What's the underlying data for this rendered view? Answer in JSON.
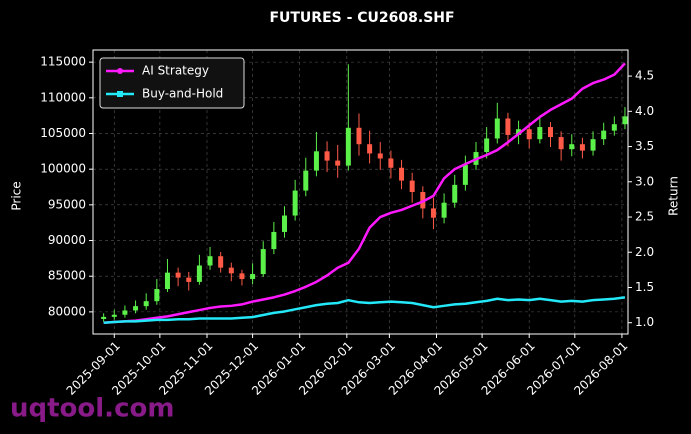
{
  "chart_data": {
    "type": "candlestick",
    "title": "FUTURES - CU2608.SHF",
    "ylabel": "Price",
    "y2label": "Return",
    "watermark": "uqtool.com",
    "up_color": "#5cf04a",
    "down_color": "#ff5a48",
    "grid": true,
    "legend": "upper left",
    "xlim": [
      "2025-08-18",
      "2026-08-05"
    ],
    "xticks": [
      "2025-09-01",
      "2025-10-01",
      "2025-11-01",
      "2025-12-01",
      "2026-01-01",
      "2026-02-01",
      "2026-03-01",
      "2026-04-01",
      "2026-05-01",
      "2026-06-01",
      "2026-07-01",
      "2026-08-01"
    ],
    "ylim": [
      76900,
      116700
    ],
    "yticks": [
      80000,
      85000,
      90000,
      95000,
      100000,
      105000,
      110000,
      115000
    ],
    "y2lim": [
      0.84,
      4.87
    ],
    "y2ticks": [
      {
        "value": 1,
        "label": "1.0"
      },
      1.5,
      {
        "value": 2,
        "label": "2.0"
      },
      2.5,
      {
        "value": 3,
        "label": "3.0"
      },
      3.5,
      {
        "value": 4,
        "label": "4.0"
      },
      4.5
    ],
    "x": [
      "2025-08-25",
      "2025-09-01",
      "2025-09-08",
      "2025-09-15",
      "2025-09-22",
      "2025-09-29",
      "2025-10-06",
      "2025-10-13",
      "2025-10-20",
      "2025-10-27",
      "2025-11-03",
      "2025-11-10",
      "2025-11-17",
      "2025-11-24",
      "2025-12-01",
      "2025-12-08",
      "2025-12-15",
      "2025-12-22",
      "2025-12-29",
      "2026-01-05",
      "2026-01-12",
      "2026-01-19",
      "2026-01-26",
      "2026-02-02",
      "2026-02-09",
      "2026-02-16",
      "2026-02-23",
      "2026-03-02",
      "2026-03-09",
      "2026-03-16",
      "2026-03-23",
      "2026-03-30",
      "2026-04-06",
      "2026-04-13",
      "2026-04-20",
      "2026-04-27",
      "2026-05-04",
      "2026-05-11",
      "2026-05-18",
      "2026-05-25",
      "2026-06-01",
      "2026-06-08",
      "2026-06-15",
      "2026-06-22",
      "2026-06-29",
      "2026-07-06",
      "2026-07-13",
      "2026-07-20",
      "2026-07-27",
      "2026-08-03"
    ],
    "open": [
      79000,
      79300,
      79600,
      80200,
      80800,
      81500,
      83200,
      85500,
      84800,
      84200,
      86500,
      87800,
      86200,
      85400,
      84600,
      85300,
      88800,
      91200,
      93500,
      97000,
      99800,
      102500,
      101200,
      100500,
      105800,
      103500,
      102200,
      101500,
      100200,
      98400,
      96800,
      94500,
      93200,
      95300,
      97800,
      100600,
      102400,
      104300,
      107100,
      104800,
      105600,
      104200,
      105900,
      104500,
      102800,
      103500,
      102600,
      104200,
      105400,
      106300
    ],
    "high": [
      79800,
      80300,
      80900,
      81600,
      82600,
      84600,
      87400,
      86200,
      85600,
      88000,
      89100,
      88400,
      86900,
      85900,
      86800,
      89900,
      92600,
      94800,
      98500,
      101600,
      105200,
      103900,
      103400,
      114700,
      107800,
      105400,
      103800,
      102600,
      101300,
      99500,
      97600,
      96000,
      96600,
      99200,
      101900,
      103800,
      105900,
      109300,
      107900,
      106800,
      106500,
      107200,
      106600,
      105300,
      104900,
      104400,
      105300,
      106500,
      107400,
      108700
    ],
    "low": [
      78600,
      78900,
      79200,
      79800,
      80300,
      81000,
      82800,
      83600,
      83000,
      83800,
      85900,
      85500,
      84300,
      83700,
      83900,
      84900,
      88100,
      90400,
      92800,
      96200,
      99000,
      99600,
      98800,
      99800,
      101900,
      100800,
      99900,
      98700,
      97200,
      95300,
      93100,
      91600,
      92400,
      94600,
      97000,
      99900,
      101500,
      103600,
      103200,
      103500,
      102900,
      103600,
      103100,
      101200,
      101800,
      101500,
      101900,
      103400,
      104700,
      105600
    ],
    "close": [
      79300,
      79600,
      80200,
      80800,
      81500,
      83200,
      85500,
      84800,
      84200,
      86500,
      87800,
      86200,
      85400,
      84600,
      85300,
      88800,
      91200,
      93500,
      97000,
      99800,
      102500,
      101200,
      100500,
      105800,
      103500,
      102200,
      101500,
      100200,
      98400,
      96800,
      94500,
      93200,
      95300,
      97800,
      100600,
      102400,
      104300,
      107100,
      104800,
      105600,
      104200,
      105900,
      104500,
      102800,
      103500,
      102600,
      104200,
      105400,
      106300,
      107400
    ],
    "series": [
      {
        "name": "AI Strategy",
        "color": "#ff19ff",
        "axis": "y2",
        "values": [
          1.0,
          1.01,
          1.02,
          1.03,
          1.05,
          1.07,
          1.09,
          1.12,
          1.15,
          1.18,
          1.21,
          1.23,
          1.24,
          1.26,
          1.3,
          1.33,
          1.36,
          1.4,
          1.45,
          1.51,
          1.58,
          1.67,
          1.78,
          1.85,
          2.05,
          2.35,
          2.5,
          2.56,
          2.6,
          2.66,
          2.72,
          2.8,
          3.05,
          3.18,
          3.25,
          3.32,
          3.38,
          3.45,
          3.56,
          3.68,
          3.8,
          3.92,
          4.02,
          4.1,
          4.18,
          4.32,
          4.4,
          4.45,
          4.52,
          4.68
        ]
      },
      {
        "name": "Buy-and-Hold",
        "color": "#22e8f8",
        "axis": "y2",
        "values": [
          1.0,
          1.01,
          1.02,
          1.02,
          1.03,
          1.04,
          1.04,
          1.05,
          1.05,
          1.06,
          1.06,
          1.06,
          1.06,
          1.07,
          1.08,
          1.11,
          1.14,
          1.16,
          1.19,
          1.22,
          1.25,
          1.27,
          1.28,
          1.32,
          1.29,
          1.28,
          1.29,
          1.3,
          1.29,
          1.28,
          1.25,
          1.22,
          1.24,
          1.26,
          1.27,
          1.29,
          1.31,
          1.34,
          1.32,
          1.33,
          1.32,
          1.34,
          1.32,
          1.3,
          1.31,
          1.3,
          1.32,
          1.33,
          1.34,
          1.36
        ]
      }
    ]
  }
}
